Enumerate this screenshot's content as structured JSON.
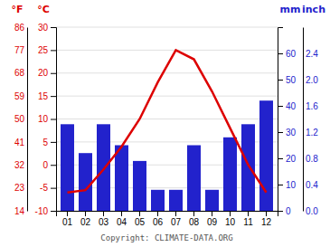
{
  "chart_data": {
    "type": "bar",
    "categories": [
      "01",
      "02",
      "03",
      "04",
      "05",
      "06",
      "07",
      "08",
      "09",
      "10",
      "11",
      "12"
    ],
    "series": [
      {
        "type": "bar",
        "axis": "y2",
        "color": "#2222cc",
        "values": [
          33,
          22,
          33,
          25,
          19,
          8,
          8,
          25,
          8,
          28,
          33,
          42
        ]
      },
      {
        "type": "line",
        "color": "#dd0000",
        "values": [
          -6,
          -5.5,
          -1,
          4,
          10,
          18,
          25,
          23,
          16,
          8,
          0,
          -6
        ]
      }
    ],
    "y_label": "°C",
    "ylim": [
      -10,
      30
    ],
    "yticks": [
      -10,
      -5,
      0,
      5,
      10,
      15,
      20,
      25,
      30
    ],
    "y2_label": "mm",
    "y2lim": [
      0,
      70
    ],
    "y2ticks": [
      0,
      10,
      20,
      30,
      40,
      50,
      60
    ],
    "y3_label": "°F",
    "y3lim": [
      -10,
      30
    ],
    "y3ticks": [
      {
        "value": -10,
        "label": "14"
      },
      {
        "value": -5,
        "label": "23"
      },
      {
        "value": 0,
        "label": "32"
      },
      {
        "value": 5,
        "label": "41"
      },
      {
        "value": 10,
        "label": "50"
      },
      {
        "value": 15,
        "label": "59"
      },
      {
        "value": 20,
        "label": "68"
      },
      {
        "value": 25,
        "label": "77"
      },
      {
        "value": 30,
        "label": "86"
      }
    ],
    "y4_label": "inch",
    "y4lim": [
      0,
      70
    ],
    "y4ticks": [
      {
        "value": 0,
        "label": "0.0"
      },
      {
        "value": 10,
        "label": "0.4"
      },
      {
        "value": 20,
        "label": "0.8"
      },
      {
        "value": 30,
        "label": "1.2"
      },
      {
        "value": 40,
        "label": "1.6"
      },
      {
        "value": 50,
        "label": "2.0"
      },
      {
        "value": 60,
        "label": "2.4"
      }
    ],
    "annotations": [
      "Copyright: CLIMATE-DATA.ORG"
    ],
    "grid": true
  }
}
